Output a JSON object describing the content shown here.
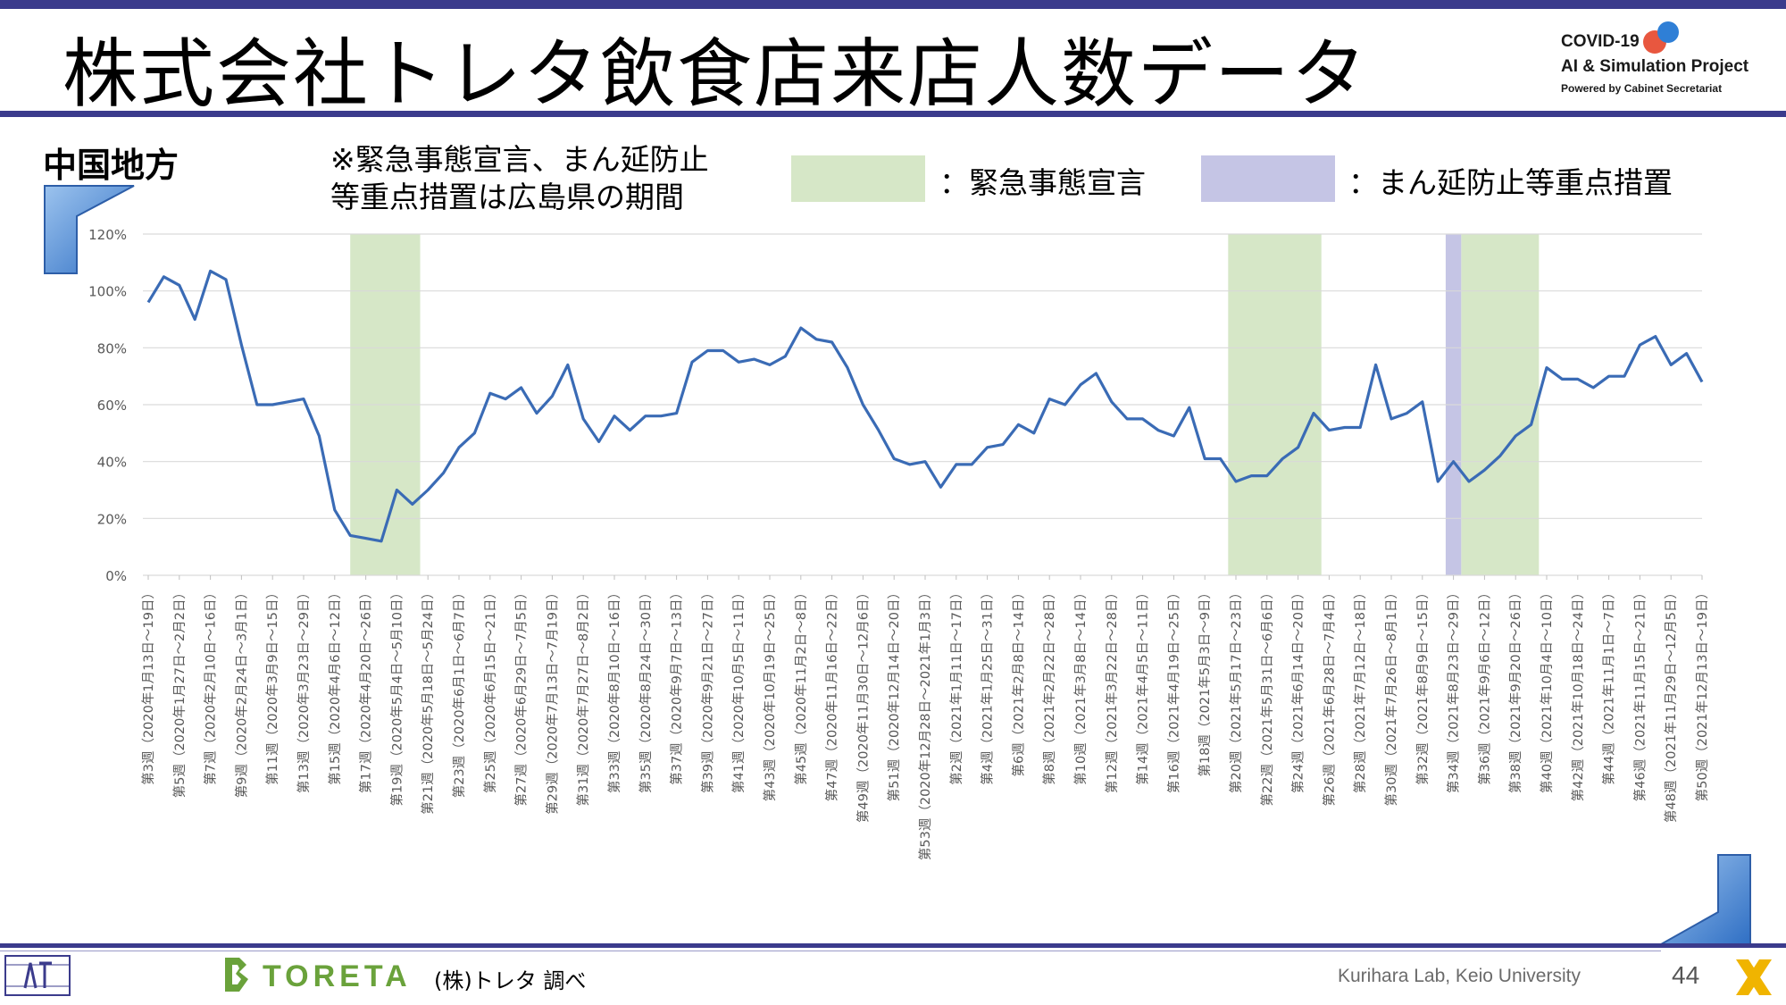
{
  "header": {
    "title": "株式会社トレタ飲食店来店人数データ",
    "logo_line1": "COVID-19",
    "logo_line2": "AI & Simulation Project",
    "logo_line3": "Powered by Cabinet Secretariat"
  },
  "region": "中国地方",
  "note": {
    "line1": "※緊急事態宣言、まん延防止",
    "line2": "等重点措置は広島県の期間"
  },
  "legend": {
    "emergency_label": "：緊急事態宣言",
    "emergency_color": "#d6e7c7",
    "priority_label": "：まん延防止等重点措置",
    "priority_color": "#c5c5e5"
  },
  "footer": {
    "brand": "TORETA",
    "source": "(株)トレタ 調べ",
    "lab": "Kurihara Lab, Keio University",
    "page": "44"
  },
  "chart_data": {
    "type": "line",
    "ylim": [
      0,
      120
    ],
    "y_ticks": [
      "0%",
      "20%",
      "40%",
      "60%",
      "80%",
      "100%",
      "120%"
    ],
    "line_color": "#3a6bb5",
    "x_tick_labels": [
      "第3週（2020年1月13日～19日）",
      "第5週（2020年1月27日～2月2日）",
      "第7週（2020年2月10日～16日）",
      "第9週（2020年2月24日～3月1日）",
      "第11週（2020年3月9日～15日）",
      "第13週（2020年3月23日～29日）",
      "第15週（2020年4月6日～12日）",
      "第17週（2020年4月20日～26日）",
      "第19週（2020年5月4日～5月10日）",
      "第21週（2020年5月18日～5月24日）",
      "第23週（2020年6月1日～6月7日）",
      "第25週（2020年6月15日～21日）",
      "第27週（2020年6月29日～7月5日）",
      "第29週（2020年7月13日～7月19日）",
      "第31週（2020年7月27日～8月2日）",
      "第33週（2020年8月10日～16日）",
      "第35週（2020年8月24日～30日）",
      "第37週（2020年9月7日～13日）",
      "第39週（2020年9月21日～27日）",
      "第41週（2020年10月5日～11日）",
      "第43週（2020年10月19日～25日）",
      "第45週（2020年11月2日～8日）",
      "第47週（2020年11月16日～22日）",
      "第49週（2020年11月30日～12月6日）",
      "第51週（2020年12月14日～20日）",
      "第53週（2020年12月28日～2021年1月3日）",
      "第2週（2021年1月11日～17日）",
      "第4週（2021年1月25日～31日）",
      "第6週（2021年2月8日～14日）",
      "第8週（2021年2月22日～28日）",
      "第10週（2021年3月8日～14日）",
      "第12週（2021年3月22日～28日）",
      "第14週（2021年4月5日～11日）",
      "第16週（2021年4月19日～25日）",
      "第18週（2021年5月3日～9日）",
      "第20週（2021年5月17日～23日）",
      "第22週（2021年5月31日～6月6日）",
      "第24週（2021年6月14日～20日）",
      "第26週（2021年6月28日～7月4日）",
      "第28週（2021年7月12日～18日）",
      "第30週（2021年7月26日～8月1日）",
      "第32週（2021年8月9日～15日）",
      "第34週（2021年8月23日～29日）",
      "第36週（2021年9月6日～12日）",
      "第38週（2021年9月20日～26日）",
      "第40週（2021年10月4日～10日）",
      "第42週（2021年10月18日～24日）",
      "第44週（2021年11月1日～7日）",
      "第46週（2021年11月15日～21日）",
      "第48週（2021年11月29日～12月5日）",
      "第50週（2021年12月13日～19日）"
    ],
    "values": [
      96,
      105,
      102,
      90,
      107,
      104,
      81,
      60,
      60,
      61,
      62,
      49,
      23,
      14,
      13,
      12,
      30,
      25,
      30,
      36,
      45,
      50,
      64,
      62,
      66,
      57,
      63,
      74,
      55,
      47,
      56,
      51,
      56,
      56,
      57,
      75,
      79,
      79,
      75,
      76,
      74,
      77,
      87,
      83,
      82,
      73,
      60,
      51,
      41,
      39,
      40,
      31,
      39,
      39,
      45,
      46,
      53,
      50,
      62,
      60,
      67,
      71,
      61,
      55,
      55,
      51,
      49,
      59,
      41,
      41,
      33,
      35,
      35,
      41,
      45,
      57,
      51,
      52,
      52,
      74,
      55,
      57,
      61,
      33,
      40,
      33,
      37,
      42,
      49,
      53,
      73,
      69,
      69,
      66,
      70,
      70,
      81,
      84,
      74,
      78,
      68
    ],
    "emergency_periods": [
      [
        13,
        17.5
      ],
      [
        69.5,
        75.5
      ],
      [
        84.5,
        89.5
      ]
    ],
    "priority_periods": [
      [
        83.5,
        84.5
      ]
    ]
  }
}
